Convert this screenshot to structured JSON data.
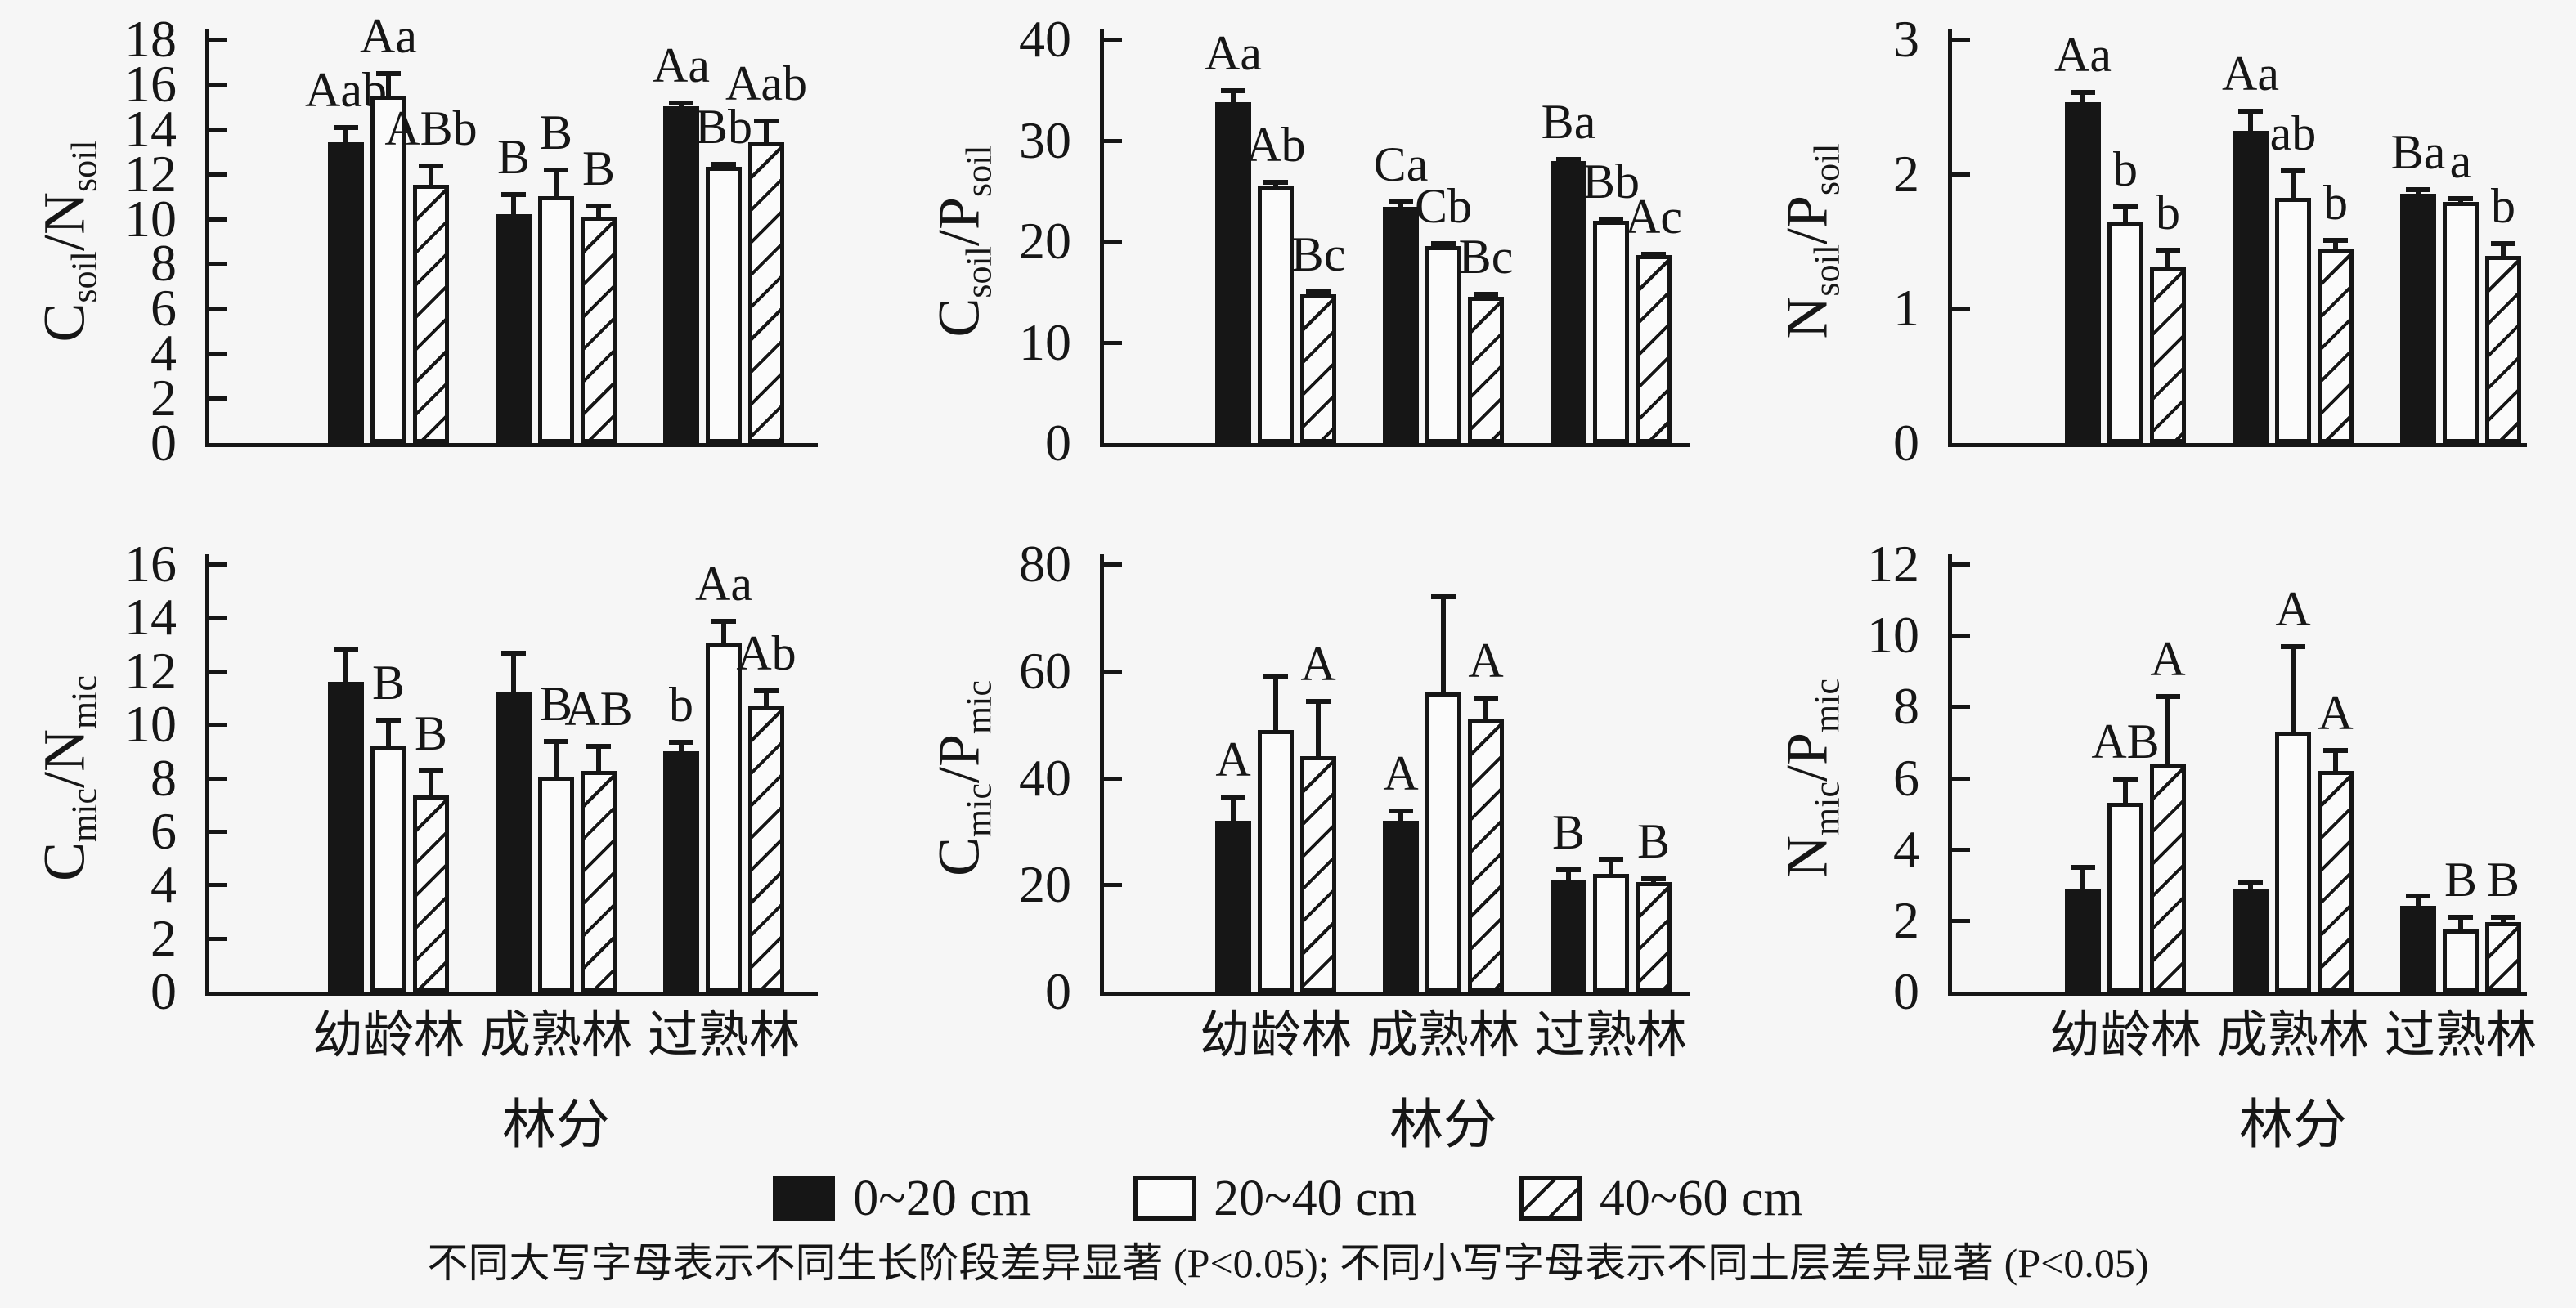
{
  "figure": {
    "background": "#f6f6f6",
    "ink": "#161616",
    "legend": [
      {
        "label": "0~20 cm",
        "pattern": "solid"
      },
      {
        "label": "20~40 cm",
        "pattern": "open"
      },
      {
        "label": "40~60 cm",
        "pattern": "hatched"
      }
    ],
    "footnote": "不同大写字母表示不同生长阶段差异显著 (P<0.05); 不同小写字母表示不同土层差异显著 (P<0.05)"
  },
  "chart_data": [
    {
      "id": "soil-cn",
      "position": "top-left",
      "type": "bar",
      "ylabel_text": "Csoil/Nsoil",
      "ylabel_parts": [
        {
          "main": "C",
          "sub": "soil"
        },
        {
          "main": "N",
          "sub": "soil"
        }
      ],
      "ylim": [
        0,
        18
      ],
      "yticks": [
        0,
        2,
        4,
        6,
        8,
        10,
        12,
        14,
        16,
        18
      ],
      "categories": [
        "幼龄林",
        "成熟林",
        "过熟林"
      ],
      "show_xticklabels": false,
      "xlabel": null,
      "series": [
        {
          "name": "0~20 cm",
          "pattern": "solid",
          "values": [
            13.4,
            10.2,
            15.0
          ],
          "errors": [
            0.7,
            0.9,
            0.2
          ],
          "letters": [
            "Aab",
            "B",
            "Aa"
          ]
        },
        {
          "name": "20~40 cm",
          "pattern": "open",
          "values": [
            15.5,
            11.0,
            12.3
          ],
          "errors": [
            1.0,
            1.2,
            0.15
          ],
          "letters": [
            "Aa",
            "B",
            "Bb"
          ]
        },
        {
          "name": "40~60 cm",
          "pattern": "hatched",
          "values": [
            11.5,
            10.1,
            13.4
          ],
          "errors": [
            0.9,
            0.5,
            1.0
          ],
          "letters": [
            "ABb",
            "B",
            "Aab"
          ]
        }
      ]
    },
    {
      "id": "soil-cp",
      "position": "top-middle",
      "type": "bar",
      "ylabel_text": "Csoil/Psoil",
      "ylabel_parts": [
        {
          "main": "C",
          "sub": "soil"
        },
        {
          "main": "P",
          "sub": "soil"
        }
      ],
      "ylim": [
        0,
        40
      ],
      "yticks": [
        0,
        10,
        20,
        30,
        40
      ],
      "categories": [
        "幼龄林",
        "成熟林",
        "过熟林"
      ],
      "show_xticklabels": false,
      "xlabel": null,
      "series": [
        {
          "name": "0~20 cm",
          "pattern": "solid",
          "values": [
            33.8,
            23.4,
            27.9
          ],
          "errors": [
            1.2,
            0.6,
            0.3
          ],
          "letters": [
            "Aa",
            "Ca",
            "Ba"
          ]
        },
        {
          "name": "20~40 cm",
          "pattern": "open",
          "values": [
            25.5,
            19.5,
            22.0
          ],
          "errors": [
            0.4,
            0.3,
            0.3
          ],
          "letters": [
            "Ab",
            "Cb",
            "Bb"
          ]
        },
        {
          "name": "40~60 cm",
          "pattern": "hatched",
          "values": [
            14.7,
            14.5,
            18.6
          ],
          "errors": [
            0.4,
            0.3,
            0.2
          ],
          "letters": [
            "Bc",
            "Bc",
            "Ac"
          ]
        }
      ]
    },
    {
      "id": "soil-np",
      "position": "top-right",
      "type": "bar",
      "ylabel_text": "Nsoil/Psoil",
      "ylabel_parts": [
        {
          "main": "N",
          "sub": "soil"
        },
        {
          "main": "P",
          "sub": "soil"
        }
      ],
      "ylim": [
        0,
        3
      ],
      "yticks": [
        0,
        1,
        2,
        3
      ],
      "categories": [
        "幼龄林",
        "成熟林",
        "过熟林"
      ],
      "show_xticklabels": false,
      "xlabel": null,
      "series": [
        {
          "name": "0~20 cm",
          "pattern": "solid",
          "values": [
            2.53,
            2.32,
            1.85
          ],
          "errors": [
            0.08,
            0.15,
            0.04
          ],
          "letters": [
            "Aa",
            "Aa",
            "Ba"
          ]
        },
        {
          "name": "20~40 cm",
          "pattern": "open",
          "values": [
            1.64,
            1.82,
            1.79
          ],
          "errors": [
            0.12,
            0.21,
            0.03
          ],
          "letters": [
            "b",
            "ab",
            "a"
          ]
        },
        {
          "name": "40~60 cm",
          "pattern": "hatched",
          "values": [
            1.31,
            1.44,
            1.39
          ],
          "errors": [
            0.13,
            0.07,
            0.1
          ],
          "letters": [
            "b",
            "b",
            "b"
          ]
        }
      ]
    },
    {
      "id": "mic-cn",
      "position": "bottom-left",
      "type": "bar",
      "ylabel_text": "Cmic/Nmic",
      "ylabel_parts": [
        {
          "main": "C",
          "sub": "mic"
        },
        {
          "main": "N",
          "sub": "mic"
        }
      ],
      "ylim": [
        0,
        16
      ],
      "yticks": [
        0,
        2,
        4,
        6,
        8,
        10,
        12,
        14,
        16
      ],
      "categories": [
        "幼龄林",
        "成熟林",
        "过熟林"
      ],
      "show_xticklabels": true,
      "xlabel": "林分",
      "series": [
        {
          "name": "0~20 cm",
          "pattern": "solid",
          "values": [
            11.6,
            11.2,
            9.0
          ],
          "errors": [
            1.25,
            1.5,
            0.35
          ],
          "letters": [
            "",
            "",
            "b"
          ]
        },
        {
          "name": "20~40 cm",
          "pattern": "open",
          "values": [
            9.2,
            8.05,
            13.05
          ],
          "errors": [
            1.0,
            1.35,
            0.85
          ],
          "letters": [
            "B",
            "B",
            "Aa"
          ]
        },
        {
          "name": "40~60 cm",
          "pattern": "hatched",
          "values": [
            7.35,
            8.25,
            10.7
          ],
          "errors": [
            0.95,
            0.95,
            0.6
          ],
          "letters": [
            "B",
            "AB",
            "Ab"
          ]
        }
      ]
    },
    {
      "id": "mic-cp",
      "position": "bottom-middle",
      "type": "bar",
      "ylabel_text": "Cmic/Pmic",
      "ylabel_parts": [
        {
          "main": "C",
          "sub": "mic"
        },
        {
          "main": "P",
          "sub": "mic"
        }
      ],
      "ylim": [
        0,
        80
      ],
      "yticks": [
        0,
        20,
        40,
        60,
        80
      ],
      "categories": [
        "幼龄林",
        "成熟林",
        "过熟林"
      ],
      "show_xticklabels": true,
      "xlabel": "林分",
      "series": [
        {
          "name": "0~20 cm",
          "pattern": "solid",
          "values": [
            32,
            32,
            21
          ],
          "errors": [
            4.5,
            2,
            2
          ],
          "letters": [
            "A",
            "A",
            "B"
          ]
        },
        {
          "name": "20~40 cm",
          "pattern": "open",
          "values": [
            49,
            56,
            22
          ],
          "errors": [
            10,
            18,
            3
          ],
          "letters": [
            "",
            "",
            ""
          ]
        },
        {
          "name": "40~60 cm",
          "pattern": "hatched",
          "values": [
            44,
            51,
            20.5
          ],
          "errors": [
            10.5,
            4,
            0.8
          ],
          "letters": [
            "A",
            "A",
            "B"
          ]
        }
      ]
    },
    {
      "id": "mic-np",
      "position": "bottom-right",
      "type": "bar",
      "ylabel_text": "Nmic/Pmic",
      "ylabel_parts": [
        {
          "main": "N",
          "sub": "mic"
        },
        {
          "main": "P",
          "sub": "mic"
        }
      ],
      "ylim": [
        0,
        12
      ],
      "yticks": [
        0,
        2,
        4,
        6,
        8,
        10,
        12
      ],
      "categories": [
        "幼龄林",
        "成熟林",
        "过熟林"
      ],
      "show_xticklabels": true,
      "xlabel": "林分",
      "series": [
        {
          "name": "0~20 cm",
          "pattern": "solid",
          "values": [
            2.9,
            2.9,
            2.4
          ],
          "errors": [
            0.6,
            0.2,
            0.3
          ],
          "letters": [
            "",
            "",
            ""
          ]
        },
        {
          "name": "20~40 cm",
          "pattern": "open",
          "values": [
            5.3,
            7.3,
            1.75
          ],
          "errors": [
            0.7,
            2.4,
            0.35
          ],
          "letters": [
            "AB",
            "A",
            "B"
          ]
        },
        {
          "name": "40~60 cm",
          "pattern": "hatched",
          "values": [
            6.4,
            6.2,
            1.95
          ],
          "errors": [
            1.9,
            0.6,
            0.15
          ],
          "letters": [
            "A",
            "A",
            "B"
          ]
        }
      ]
    }
  ]
}
